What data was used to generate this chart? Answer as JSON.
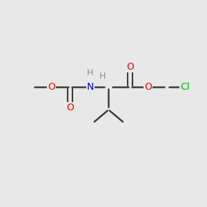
{
  "background_color": "#e8e8e8",
  "bond_color": "#3a3a3a",
  "atom_colors": {
    "O": "#ff0000",
    "N": "#0000cc",
    "Cl": "#00bb00",
    "H": "#7a9090",
    "C": "#3a3a3a"
  },
  "figsize": [
    3.0,
    3.0
  ],
  "dpi": 100,
  "xlim": [
    0,
    10
  ],
  "ylim": [
    0,
    10
  ],
  "font_size": 10,
  "bond_lw": 1.8
}
